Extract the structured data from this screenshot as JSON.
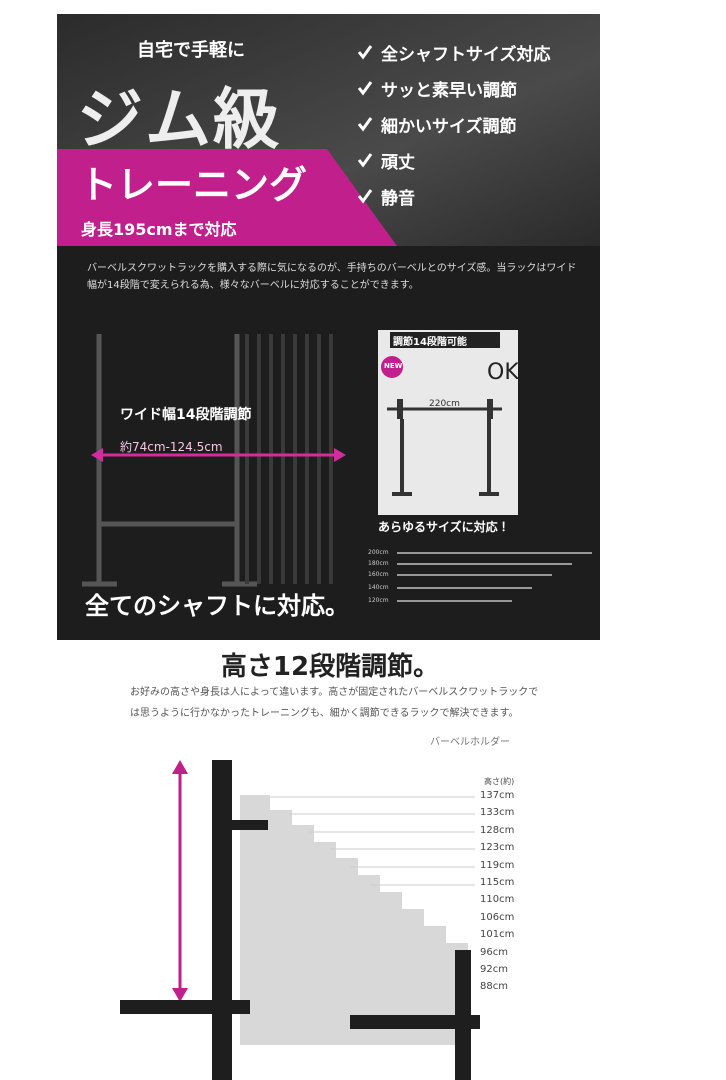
{
  "banner": {
    "lead": "自宅で手軽に",
    "headline": "ジム級",
    "subheadline": "トレーニング",
    "note": "身長195cmまで対応",
    "features": [
      "全シャフトサイズ対応",
      "サッと素早い調節",
      "細かいサイズ調節",
      "頑丈",
      "静音"
    ]
  },
  "width_section": {
    "description": "バーベルスクワットラックを購入する際に気になるのが、手持ちのバーベルとのサイズ感。当ラックはワイド幅が14段階で変えられる為、様々なバーベルに対応することができます。",
    "width_title": "ワイド幅14段階調節",
    "width_range": "約74cm-124.5cm",
    "inset": {
      "header": "調節14段階可能",
      "badge": "NEW",
      "ok": "OK",
      "length": "220cm",
      "caption": "あらゆるサイズに対応！"
    },
    "bar_lengths": [
      "200cm",
      "180cm",
      "160cm",
      "140cm",
      "120cm"
    ],
    "footer": "全てのシャフトに対応。"
  },
  "height_section": {
    "title": "高さ12段階調節。",
    "description": "お好みの高さや身長は人によって違います。高さが固定されたバーベルスクワットラックでは思うように行かなかったトレーニングも、細かく調節できるラックで解決できます。",
    "holder_label": "バーベルホルダー",
    "height_header": "高さ(約)",
    "heights": [
      "137cm",
      "133cm",
      "128cm",
      "123cm",
      "119cm",
      "115cm",
      "110cm",
      "106cm",
      "101cm",
      "96cm",
      "92cm",
      "88cm"
    ]
  }
}
